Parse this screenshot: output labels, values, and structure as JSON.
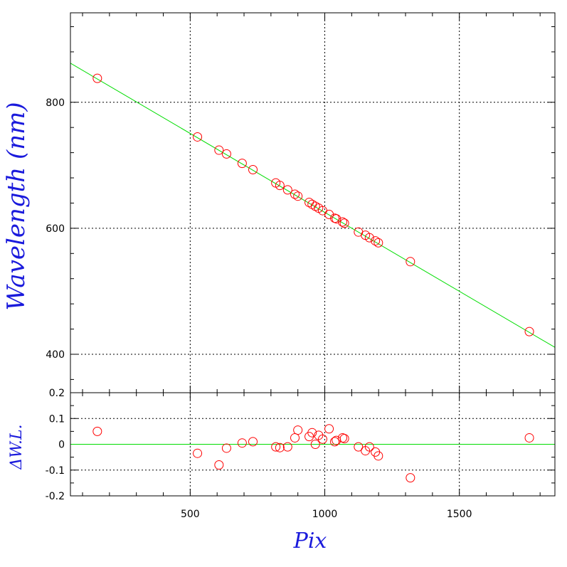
{
  "chart_data": [
    {
      "type": "scatter",
      "title": "",
      "xlabel": "",
      "ylabel": "Wavelength (nm)",
      "xlim": [
        55,
        1855
      ],
      "ylim": [
        339,
        942
      ],
      "xticks": [
        500,
        1000,
        1500
      ],
      "yticks": [
        400,
        600,
        800
      ],
      "ytick_labels": [
        "400",
        "600",
        "800"
      ],
      "grid": true,
      "fit_line": {
        "x": [
          55,
          1855
        ],
        "y": [
          862,
          411
        ]
      },
      "series": [
        {
          "marker": "open-circle",
          "x": [
            155,
            527,
            607,
            635,
            693,
            733,
            818,
            833,
            862,
            889,
            900,
            942,
            953,
            965,
            977,
            992,
            1016,
            1037,
            1043,
            1066,
            1073,
            1125,
            1151,
            1166,
            1188,
            1199,
            1318,
            1760
          ],
          "y": [
            838,
            745,
            724,
            718,
            703,
            693,
            672,
            668,
            661,
            654,
            651,
            641,
            638,
            635,
            632,
            628,
            622,
            616,
            615,
            610,
            608,
            594,
            589,
            585,
            580,
            577,
            547,
            436
          ]
        }
      ]
    },
    {
      "type": "scatter",
      "title": "",
      "xlabel": "Pix",
      "ylabel": "ΔW.L.",
      "xlim": [
        55,
        1855
      ],
      "ylim": [
        -0.2,
        0.2
      ],
      "xticks": [
        500,
        1000,
        1500
      ],
      "xtick_labels": [
        "500",
        "1000",
        "1500"
      ],
      "yticks": [
        -0.2,
        -0.1,
        0,
        0.1,
        0.2
      ],
      "ytick_labels": [
        "-0.2",
        "-0.1",
        "0",
        "0.1",
        "0.2"
      ],
      "grid": true,
      "fit_line": {
        "x": [
          55,
          1855
        ],
        "y": [
          0,
          0
        ]
      },
      "series": [
        {
          "marker": "open-circle",
          "x": [
            155,
            527,
            607,
            635,
            693,
            733,
            818,
            833,
            862,
            889,
            900,
            942,
            953,
            965,
            977,
            992,
            1016,
            1037,
            1043,
            1066,
            1073,
            1125,
            1151,
            1166,
            1188,
            1199,
            1318,
            1760
          ],
          "y": [
            0.05,
            -0.035,
            -0.08,
            -0.015,
            0.005,
            0.01,
            -0.01,
            -0.013,
            -0.01,
            0.025,
            0.055,
            0.03,
            0.045,
            0.0,
            0.035,
            0.02,
            0.06,
            0.01,
            0.015,
            0.025,
            0.022,
            -0.01,
            -0.025,
            -0.01,
            -0.03,
            -0.045,
            -0.13,
            0.025
          ]
        }
      ]
    }
  ],
  "colors": {
    "frame": "#000000",
    "grid": "#000000",
    "fit_line": "#00dd00",
    "marker": "#ff0000",
    "axis_title": "#1a1adc"
  }
}
